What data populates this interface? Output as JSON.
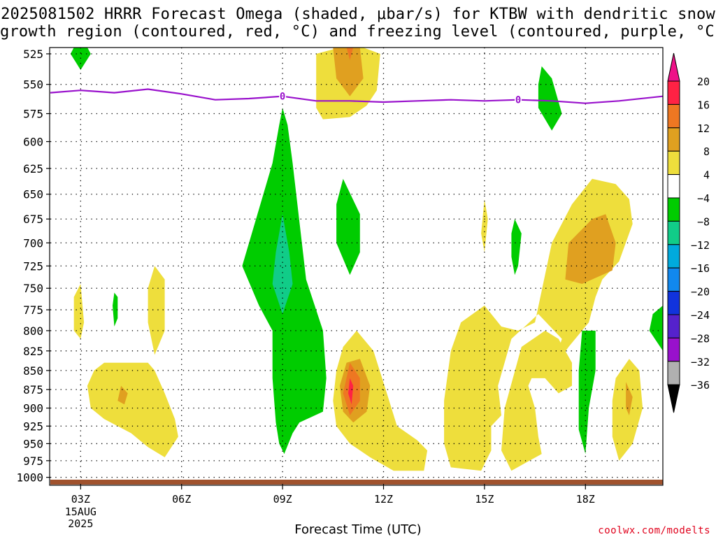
{
  "title_line1": "2025081502 HRRR Forecast Omega (shaded, μbar/s) for KTBW with dendritic snow",
  "title_line2": "growth region (contoured, red, °C) and freezing level (contoured, purple, °C)",
  "xlabel": "Forecast Time (UTC)",
  "credit": "coolwx.com/modelts",
  "chart_data": {
    "type": "heatmap",
    "title": "2025081502 HRRR Forecast Omega (shaded, μbar/s) for KTBW with dendritic snow growth region (contoured, red, °C) and freezing level (contoured, purple, °C)",
    "xlabel": "Forecast Time (UTC)",
    "ylabel": "",
    "x_range_hours_utc": [
      2.1,
      20.3
    ],
    "y_range_hpa": [
      1010,
      520
    ],
    "y_scale": "log-pressure",
    "grid": true,
    "x_ticks": [
      {
        "hour": 3,
        "label": "03Z",
        "sub1": "15AUG",
        "sub2": "2025"
      },
      {
        "hour": 6,
        "label": "06Z"
      },
      {
        "hour": 9,
        "label": "09Z"
      },
      {
        "hour": 12,
        "label": "12Z"
      },
      {
        "hour": 15,
        "label": "15Z"
      },
      {
        "hour": 18,
        "label": "18Z"
      }
    ],
    "y_ticks": [
      525,
      550,
      575,
      600,
      625,
      650,
      675,
      700,
      725,
      750,
      775,
      800,
      825,
      850,
      875,
      900,
      925,
      950,
      975,
      1000
    ],
    "colorbar": {
      "labels": [
        "20",
        "16",
        "12",
        "8",
        "4",
        "−4",
        "−8",
        "−12",
        "−16",
        "−20",
        "−24",
        "−28",
        "−32",
        "−36"
      ],
      "colors": [
        "#ff2244",
        "#ee7722",
        "#e0a020",
        "#eede3c",
        "#ffffff",
        "#00cc00",
        "#11cc88",
        "#00aadd",
        "#1188ee",
        "#1133dd",
        "#5522cc",
        "#9911cc",
        "#b0b0b0"
      ],
      "top_arrow_color": "#ee1188",
      "bottom_arrow_color": "#000000"
    },
    "freezing_level": {
      "label": "0",
      "color": "#9911cc",
      "points": [
        [
          2.1,
          557
        ],
        [
          3.0,
          555
        ],
        [
          4.0,
          557
        ],
        [
          5.0,
          554
        ],
        [
          6.0,
          558
        ],
        [
          7.0,
          563
        ],
        [
          8.0,
          562
        ],
        [
          9.0,
          560
        ],
        [
          10.0,
          564
        ],
        [
          11.0,
          564
        ],
        [
          12.0,
          565
        ],
        [
          13.0,
          564
        ],
        [
          14.0,
          563
        ],
        [
          15.0,
          564
        ],
        [
          16.0,
          563
        ],
        [
          17.0,
          564
        ],
        [
          18.0,
          566
        ],
        [
          19.0,
          564
        ],
        [
          20.3,
          560
        ]
      ]
    },
    "omega_regions": [
      {
        "level": 4,
        "points": [
          [
            10.0,
            525
          ],
          [
            10.7,
            520
          ],
          [
            11.4,
            520
          ],
          [
            11.9,
            525
          ],
          [
            11.8,
            555
          ],
          [
            11.5,
            568
          ],
          [
            11.0,
            578
          ],
          [
            10.2,
            580
          ],
          [
            10.0,
            570
          ]
        ]
      },
      {
        "level": 8,
        "points": [
          [
            10.5,
            520
          ],
          [
            11.3,
            520
          ],
          [
            11.4,
            545
          ],
          [
            11.0,
            560
          ],
          [
            10.6,
            545
          ]
        ]
      },
      {
        "level": 12,
        "points": [
          [
            10.9,
            520
          ],
          [
            11.1,
            520
          ],
          [
            11.0,
            530
          ]
        ]
      },
      {
        "level": -4,
        "points": [
          [
            2.7,
            525
          ],
          [
            3.0,
            510
          ],
          [
            3.3,
            525
          ],
          [
            3.0,
            538
          ]
        ]
      },
      {
        "level": -4,
        "points": [
          [
            8.7,
            620
          ],
          [
            8.9,
            585
          ],
          [
            9.0,
            570
          ],
          [
            9.15,
            585
          ],
          [
            9.3,
            620
          ],
          [
            9.7,
            740
          ],
          [
            10.2,
            800
          ],
          [
            10.3,
            860
          ],
          [
            10.2,
            905
          ],
          [
            9.5,
            920
          ],
          [
            9.3,
            935
          ],
          [
            9.05,
            965
          ],
          [
            8.9,
            950
          ],
          [
            8.8,
            920
          ],
          [
            8.7,
            860
          ],
          [
            8.7,
            800
          ],
          [
            8.3,
            770
          ],
          [
            7.8,
            725
          ]
        ]
      },
      {
        "level": -8,
        "points": [
          [
            9.0,
            670
          ],
          [
            9.2,
            710
          ],
          [
            9.3,
            745
          ],
          [
            9.0,
            780
          ],
          [
            8.7,
            745
          ],
          [
            8.8,
            710
          ]
        ]
      },
      {
        "level": -4,
        "points": [
          [
            10.8,
            635
          ],
          [
            11.3,
            670
          ],
          [
            11.3,
            710
          ],
          [
            11.0,
            735
          ],
          [
            10.6,
            700
          ],
          [
            10.6,
            660
          ]
        ]
      },
      {
        "level": -4,
        "points": [
          [
            16.7,
            535
          ],
          [
            17.0,
            545
          ],
          [
            17.3,
            575
          ],
          [
            17.0,
            590
          ],
          [
            16.6,
            570
          ],
          [
            16.6,
            550
          ]
        ]
      },
      {
        "level": -4,
        "points": [
          [
            15.9,
            675
          ],
          [
            16.1,
            690
          ],
          [
            16.0,
            725
          ],
          [
            15.9,
            735
          ],
          [
            15.8,
            715
          ],
          [
            15.8,
            690
          ]
        ]
      },
      {
        "level": -4,
        "points": [
          [
            14.0,
            880
          ],
          [
            14.1,
            880
          ],
          [
            14.1,
            915
          ],
          [
            14.0,
            920
          ],
          [
            13.9,
            895
          ]
        ]
      },
      {
        "level": -4,
        "points": [
          [
            4.0,
            755
          ],
          [
            4.1,
            760
          ],
          [
            4.1,
            785
          ],
          [
            4.0,
            795
          ],
          [
            3.95,
            770
          ]
        ]
      },
      {
        "level": -4,
        "points": [
          [
            17.9,
            800
          ],
          [
            18.3,
            800
          ],
          [
            18.3,
            850
          ],
          [
            18.1,
            900
          ],
          [
            18.0,
            965
          ],
          [
            17.8,
            930
          ],
          [
            17.8,
            850
          ]
        ]
      },
      {
        "level": -4,
        "points": [
          [
            20.3,
            770
          ],
          [
            20.3,
            825
          ],
          [
            19.9,
            800
          ],
          [
            20.0,
            780
          ]
        ]
      },
      {
        "level": 4,
        "points": [
          [
            2.8,
            760
          ],
          [
            3.0,
            745
          ],
          [
            3.1,
            790
          ],
          [
            3.0,
            810
          ],
          [
            2.8,
            800
          ]
        ]
      },
      {
        "level": 4,
        "points": [
          [
            5.2,
            725
          ],
          [
            5.5,
            740
          ],
          [
            5.5,
            800
          ],
          [
            5.2,
            830
          ],
          [
            5.0,
            790
          ],
          [
            5.0,
            750
          ]
        ]
      },
      {
        "level": 4,
        "points": [
          [
            3.4,
            850
          ],
          [
            3.7,
            840
          ],
          [
            5.0,
            840
          ],
          [
            5.2,
            850
          ],
          [
            5.5,
            880
          ],
          [
            5.8,
            915
          ],
          [
            5.9,
            940
          ],
          [
            5.5,
            970
          ],
          [
            5.0,
            955
          ],
          [
            4.5,
            935
          ],
          [
            3.7,
            915
          ],
          [
            3.3,
            900
          ],
          [
            3.2,
            870
          ]
        ]
      },
      {
        "level": 8,
        "points": [
          [
            4.2,
            870
          ],
          [
            4.4,
            880
          ],
          [
            4.3,
            895
          ],
          [
            4.1,
            890
          ]
        ]
      },
      {
        "level": 4,
        "points": [
          [
            10.8,
            820
          ],
          [
            11.2,
            800
          ],
          [
            11.7,
            825
          ],
          [
            12.1,
            880
          ],
          [
            12.4,
            925
          ],
          [
            13.0,
            945
          ],
          [
            13.3,
            960
          ],
          [
            13.2,
            990
          ],
          [
            12.3,
            990
          ],
          [
            11.6,
            970
          ],
          [
            11.0,
            950
          ],
          [
            10.6,
            925
          ],
          [
            10.5,
            890
          ],
          [
            10.6,
            850
          ]
        ]
      },
      {
        "level": 8,
        "points": [
          [
            10.9,
            840
          ],
          [
            11.3,
            835
          ],
          [
            11.6,
            870
          ],
          [
            11.5,
            905
          ],
          [
            11.1,
            920
          ],
          [
            10.8,
            905
          ],
          [
            10.7,
            870
          ]
        ]
      },
      {
        "level": 12,
        "points": [
          [
            11.0,
            840
          ],
          [
            11.3,
            860
          ],
          [
            11.3,
            890
          ],
          [
            11.0,
            910
          ],
          [
            10.8,
            880
          ]
        ]
      },
      {
        "level": 16,
        "points": [
          [
            11.0,
            860
          ],
          [
            11.1,
            870
          ],
          [
            11.05,
            895
          ],
          [
            10.95,
            880
          ]
        ]
      },
      {
        "level": 4,
        "points": [
          [
            15.0,
            655
          ],
          [
            15.1,
            675
          ],
          [
            15.0,
            710
          ],
          [
            14.9,
            690
          ]
        ]
      },
      {
        "level": 4,
        "points": [
          [
            17.6,
            660
          ],
          [
            18.2,
            635
          ],
          [
            18.9,
            640
          ],
          [
            19.3,
            655
          ],
          [
            19.4,
            680
          ],
          [
            19.0,
            720
          ],
          [
            18.5,
            740
          ],
          [
            18.3,
            760
          ],
          [
            18.1,
            790
          ],
          [
            17.5,
            820
          ],
          [
            17.0,
            850
          ],
          [
            17.3,
            810
          ],
          [
            16.6,
            780
          ],
          [
            15.8,
            810
          ],
          [
            15.4,
            870
          ],
          [
            15.5,
            910
          ],
          [
            15.2,
            925
          ],
          [
            15.2,
            960
          ],
          [
            14.9,
            990
          ],
          [
            14.0,
            985
          ],
          [
            13.8,
            950
          ],
          [
            13.8,
            890
          ],
          [
            14.0,
            825
          ],
          [
            14.3,
            790
          ],
          [
            15.0,
            770
          ],
          [
            15.5,
            795
          ],
          [
            16.0,
            800
          ],
          [
            16.5,
            790
          ],
          [
            17.0,
            700
          ]
        ]
      },
      {
        "level": 8,
        "points": [
          [
            17.5,
            700
          ],
          [
            18.2,
            675
          ],
          [
            18.6,
            670
          ],
          [
            18.9,
            700
          ],
          [
            18.8,
            730
          ],
          [
            17.9,
            745
          ],
          [
            17.4,
            740
          ]
        ]
      },
      {
        "level": 4,
        "points": [
          [
            16.1,
            820
          ],
          [
            16.8,
            800
          ],
          [
            17.2,
            810
          ],
          [
            17.6,
            840
          ],
          [
            17.6,
            870
          ],
          [
            17.2,
            880
          ],
          [
            16.8,
            860
          ],
          [
            16.4,
            860
          ],
          [
            16.3,
            870
          ],
          [
            16.5,
            900
          ],
          [
            16.6,
            940
          ],
          [
            16.7,
            965
          ],
          [
            15.8,
            990
          ],
          [
            15.5,
            960
          ],
          [
            15.6,
            900
          ]
        ]
      },
      {
        "level": 4,
        "points": [
          [
            19.3,
            835
          ],
          [
            19.6,
            850
          ],
          [
            19.7,
            900
          ],
          [
            19.4,
            950
          ],
          [
            19.0,
            975
          ],
          [
            18.8,
            940
          ],
          [
            18.8,
            890
          ],
          [
            18.9,
            860
          ]
        ]
      },
      {
        "level": 8,
        "points": [
          [
            19.2,
            865
          ],
          [
            19.4,
            885
          ],
          [
            19.3,
            910
          ],
          [
            19.2,
            900
          ]
        ]
      }
    ]
  }
}
